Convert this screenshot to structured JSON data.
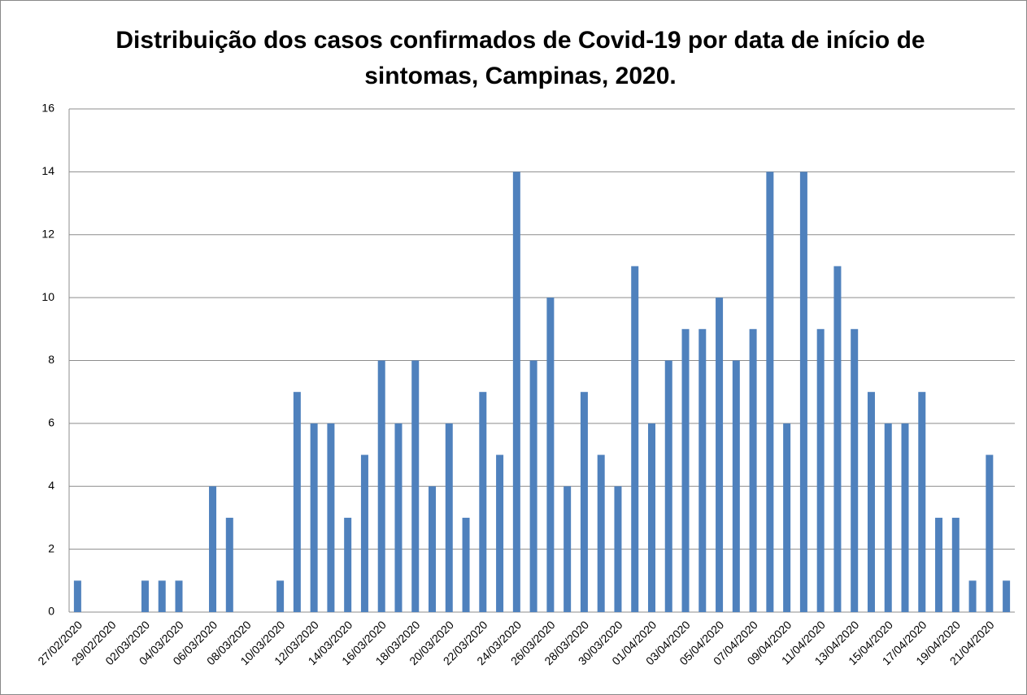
{
  "chart_data": {
    "type": "bar",
    "title": "Distribuição dos casos confirmados de Covid-19 por data de início de sintomas, Campinas, 2020.",
    "categories": [
      "27/02/2020",
      null,
      "29/02/2020",
      null,
      "02/03/2020",
      null,
      "04/03/2020",
      null,
      "06/03/2020",
      null,
      "08/03/2020",
      null,
      "10/03/2020",
      null,
      "12/03/2020",
      null,
      "14/03/2020",
      null,
      "16/03/2020",
      null,
      "18/03/2020",
      null,
      "20/03/2020",
      null,
      "22/03/2020",
      null,
      "24/03/2020",
      null,
      "26/03/2020",
      null,
      "28/03/2020",
      null,
      "30/03/2020",
      null,
      "01/04/2020",
      null,
      "03/04/2020",
      null,
      "05/04/2020",
      null,
      "07/04/2020",
      null,
      "09/04/2020",
      null,
      "11/04/2020",
      null,
      "13/04/2020",
      null,
      "15/04/2020",
      null,
      "17/04/2020",
      null,
      "19/04/2020",
      null,
      "21/04/2020",
      null
    ],
    "values": [
      1,
      0,
      0,
      0,
      1,
      1,
      1,
      0,
      4,
      3,
      0,
      0,
      1,
      7,
      6,
      6,
      3,
      5,
      8,
      6,
      8,
      4,
      6,
      3,
      7,
      5,
      14,
      8,
      10,
      4,
      7,
      5,
      4,
      11,
      6,
      8,
      9,
      9,
      10,
      8,
      9,
      14,
      6,
      14,
      9,
      11,
      9,
      7,
      6,
      6,
      7,
      3,
      3,
      1,
      5,
      1
    ],
    "color": "#4f81bd",
    "ylim": [
      0,
      16
    ],
    "yticks": [
      0,
      2,
      4,
      6,
      8,
      10,
      12,
      14,
      16
    ],
    "grid": true
  }
}
